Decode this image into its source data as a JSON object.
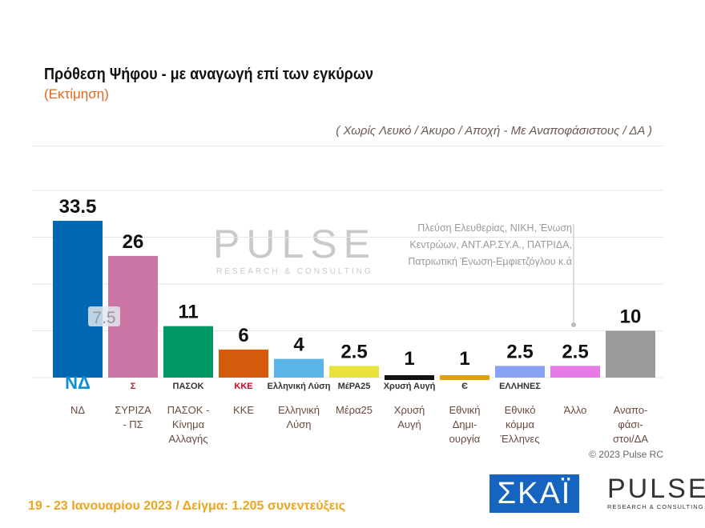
{
  "header": {
    "title": "Πρόθεση Ψήφου - με αναγωγή επί των εγκύρων",
    "subtitle": "(Εκτίμηση)",
    "note": "( Χωρίς Λευκό / Άκυρο / Αποχή  -  Με Αναποφάσιστους / ΔΑ )"
  },
  "chart_data": {
    "type": "bar",
    "title": "Πρόθεση Ψήφου - με αναγωγή επί των εγκύρων",
    "categories": [
      [
        "ΝΔ"
      ],
      [
        "ΣΥΡΙΖΑ",
        "- ΠΣ"
      ],
      [
        "ΠΑΣΟΚ -",
        "Κίνημα",
        "Αλλαγής"
      ],
      [
        "ΚΚΕ"
      ],
      [
        "Ελληνική",
        "Λύση"
      ],
      [
        "Μέρα25"
      ],
      [
        "Χρυσή",
        "Αυγή"
      ],
      [
        "Εθνική",
        "Δημι-",
        "ουργία"
      ],
      [
        "Εθνικό",
        "κόμμα",
        "Έλληνες"
      ],
      [
        "Άλλο"
      ],
      [
        "Αναπο-",
        "φάσι-",
        "στοι/ΔΑ"
      ]
    ],
    "values": [
      33.5,
      26,
      11,
      6,
      4,
      2.5,
      1,
      1,
      2.5,
      2.5,
      10
    ],
    "value_labels": [
      "33.5",
      "26",
      "11",
      "6",
      "4",
      "2.5",
      "1",
      "1",
      "2.5",
      "2.5",
      "10"
    ],
    "colors": [
      "#0068b0",
      "#cc76a6",
      "#009966",
      "#d45a0c",
      "#5ab4e6",
      "#e8e23a",
      "#111111",
      "#e0a013",
      "#8aa2f5",
      "#e87ae8",
      "#9a9a9a"
    ],
    "logos": [
      "ΝΔ",
      "Σ",
      "ΠΑΣΟΚ",
      "ΚΚΕ",
      "Ελληνική Λύση",
      "ΜέΡΑ25",
      "Χρυσή Αυγή",
      "Є",
      "ΕΛΛΗΝΕΣ",
      "",
      ""
    ],
    "overlay_label": "7.5",
    "ylim": [
      0,
      40
    ],
    "grid": true,
    "other_annotation": [
      "Πλεύση Ελευθερίας, ΝΙΚΗ, Ένωση",
      "Κεντρώων, ΑΝΤ.ΑΡ.ΣΥ.Α., ΠΑΤΡΙΔΑ,",
      "Πατριωτική Ένωση-Εμφιετζόγλου κ.ά"
    ]
  },
  "watermark": {
    "brand": "PULSE",
    "tag": "RESEARCH & CONSULTING"
  },
  "copyright": "© 2023 Pulse RC",
  "footer": "19 - 23 Ιανουαρίου 2023  /  Δείγμα:  1.205 συνεντεύξεις",
  "logos": {
    "skai": "ΣΚΑΪ",
    "pulse": "PULSE",
    "pulse_tag": "RESEARCH & CONSULTING"
  }
}
